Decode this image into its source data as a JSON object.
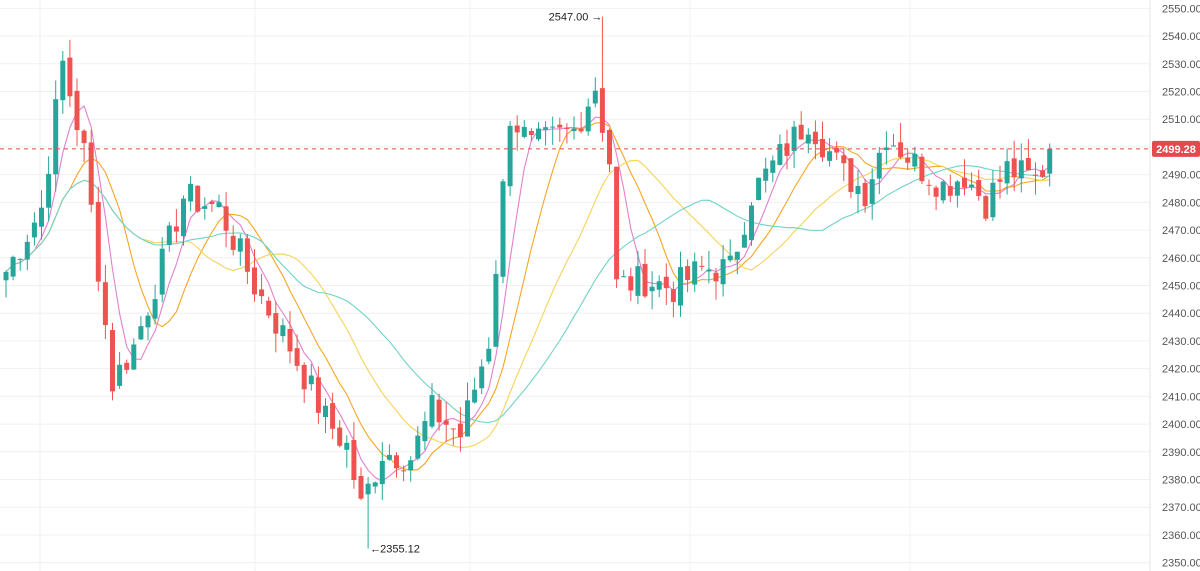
{
  "chart_data": {
    "type": "candlestick",
    "y_axis": {
      "position": "right",
      "ylim": [
        2347,
        2553
      ]
    },
    "y_ticks": [
      "2550.00",
      "2540.00",
      "2530.00",
      "2520.00",
      "2510.00",
      "2500.00",
      "2490.00",
      "2480.00",
      "2470.00",
      "2460.00",
      "2450.00",
      "2440.00",
      "2430.00",
      "2420.00",
      "2410.00",
      "2400.00",
      "2390.00",
      "2380.00",
      "2370.00",
      "2360.00",
      "2350.00"
    ],
    "current_price": {
      "label": "2499.28",
      "value": 2499.28,
      "color": "#e5484d"
    },
    "high_marker": {
      "label": "2547.00",
      "value": 2547.0
    },
    "low_marker": {
      "label": "2355.12",
      "value": 2355.12
    },
    "colors": {
      "up": "#26a69a",
      "down": "#ef5350",
      "grid": "#f0f0f0"
    },
    "moving_averages": [
      {
        "period": 5,
        "color": "#e37fd0"
      },
      {
        "period": 10,
        "color": "#f5a623"
      },
      {
        "period": 20,
        "color": "#f7d358"
      },
      {
        "period": 30,
        "color": "#6fd3c8"
      }
    ],
    "anchors": [
      [
        0,
        2455
      ],
      [
        5,
        2478
      ],
      [
        8,
        2530
      ],
      [
        11,
        2498
      ],
      [
        15,
        2415
      ],
      [
        18,
        2428
      ],
      [
        22,
        2458
      ],
      [
        25,
        2482
      ],
      [
        30,
        2478
      ],
      [
        35,
        2450
      ],
      [
        40,
        2428
      ],
      [
        45,
        2402
      ],
      [
        48,
        2392
      ],
      [
        50,
        2370
      ],
      [
        53,
        2390
      ],
      [
        57,
        2388
      ],
      [
        60,
        2405
      ],
      [
        64,
        2396
      ],
      [
        68,
        2430
      ],
      [
        71,
        2512
      ],
      [
        74,
        2500
      ],
      [
        80,
        2506
      ],
      [
        83,
        2522
      ],
      [
        85,
        2495
      ],
      [
        86,
        2450
      ],
      [
        90,
        2452
      ],
      [
        94,
        2449
      ],
      [
        98,
        2456
      ],
      [
        102,
        2456
      ],
      [
        105,
        2483
      ],
      [
        110,
        2500
      ],
      [
        113,
        2510
      ],
      [
        118,
        2490
      ],
      [
        121,
        2484
      ],
      [
        124,
        2505
      ],
      [
        128,
        2494
      ],
      [
        132,
        2486
      ],
      [
        135,
        2490
      ],
      [
        138,
        2480
      ],
      [
        141,
        2492
      ],
      [
        145,
        2488
      ],
      [
        148,
        2500
      ]
    ]
  }
}
